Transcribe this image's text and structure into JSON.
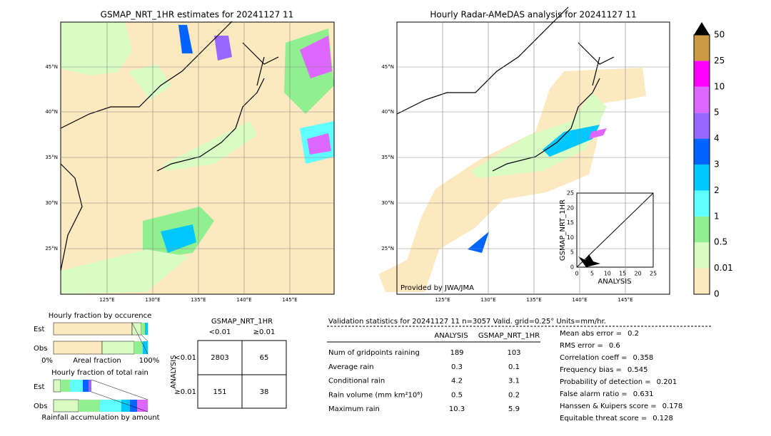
{
  "left_map": {
    "title": "GSMAP_NRT_1HR estimates for 20241127 11",
    "lat_labels": [
      "45°N",
      "40°N",
      "35°N",
      "30°N",
      "25°N"
    ],
    "lon_labels": [
      "125°E",
      "130°E",
      "135°E",
      "140°E",
      "145°E"
    ]
  },
  "right_map": {
    "title": "Hourly Radar-AMeDAS analysis for 20241127 11",
    "lat_labels": [
      "45°N",
      "40°N",
      "35°N",
      "30°N",
      "25°N"
    ],
    "lon_labels": [
      "125°E",
      "130°E",
      "135°E",
      "140°E",
      "145°E"
    ],
    "credit": "Provided by JWA/JMA",
    "inset": {
      "xlabel": "ANALYSIS",
      "ylabel": "GSMAP_NRT_1HR",
      "xticks": [
        "0",
        "5",
        "10",
        "15",
        "20",
        "25"
      ],
      "yticks": [
        "0",
        "5",
        "10",
        "15",
        "20",
        "25"
      ]
    }
  },
  "colorbar": {
    "labels": [
      "0",
      "0.01",
      "0.5",
      "1",
      "2",
      "3",
      "4",
      "5",
      "10",
      "25",
      "50"
    ]
  },
  "fraction_occurrence": {
    "title": "Hourly fraction by occurence",
    "rows": [
      "Est",
      "Obs"
    ],
    "axis": [
      "0%",
      "Areal fraction",
      "100%"
    ]
  },
  "fraction_total": {
    "title": "Hourly fraction of total rain",
    "rows": [
      "Est",
      "Obs"
    ],
    "footer": "Rainfall accumulation by amount"
  },
  "contingency": {
    "title": "GSMAP_NRT_1HR",
    "columns": [
      "<0.01",
      "≥0.01"
    ],
    "ylabel": "ANALYSIS",
    "rows": [
      {
        "label": "<0.01",
        "cells": [
          "2803",
          "65"
        ]
      },
      {
        "label": "≥0.01",
        "cells": [
          "151",
          "38"
        ]
      }
    ]
  },
  "validation": {
    "header": "Validation statistics for 20241127 11  n=3057 Valid. grid=0.25° Units=mm/hr.",
    "columns": [
      "ANALYSIS",
      "GSMAP_NRT_1HR"
    ],
    "rows": [
      [
        "Num of gridpoints raining",
        "189",
        "103"
      ],
      [
        "Average rain",
        "0.3",
        "0.1"
      ],
      [
        "Conditional rain",
        "4.2",
        "3.1"
      ],
      [
        "Rain volume (mm km²10⁶)",
        "0.5",
        "0.2"
      ],
      [
        "Maximum rain",
        "10.3",
        "5.9"
      ]
    ],
    "scores": [
      [
        "Mean abs error =",
        "0.2"
      ],
      [
        "RMS error =",
        "0.6"
      ],
      [
        "Correlation coeff =",
        "0.358"
      ],
      [
        "Frequency bias =",
        "0.545"
      ],
      [
        "Probability of detection =",
        "0.201"
      ],
      [
        "False alarm ratio =",
        "0.631"
      ],
      [
        "Hanssen & Kuipers score =",
        "0.178"
      ],
      [
        "Equitable threat score =",
        "0.128"
      ]
    ]
  }
}
